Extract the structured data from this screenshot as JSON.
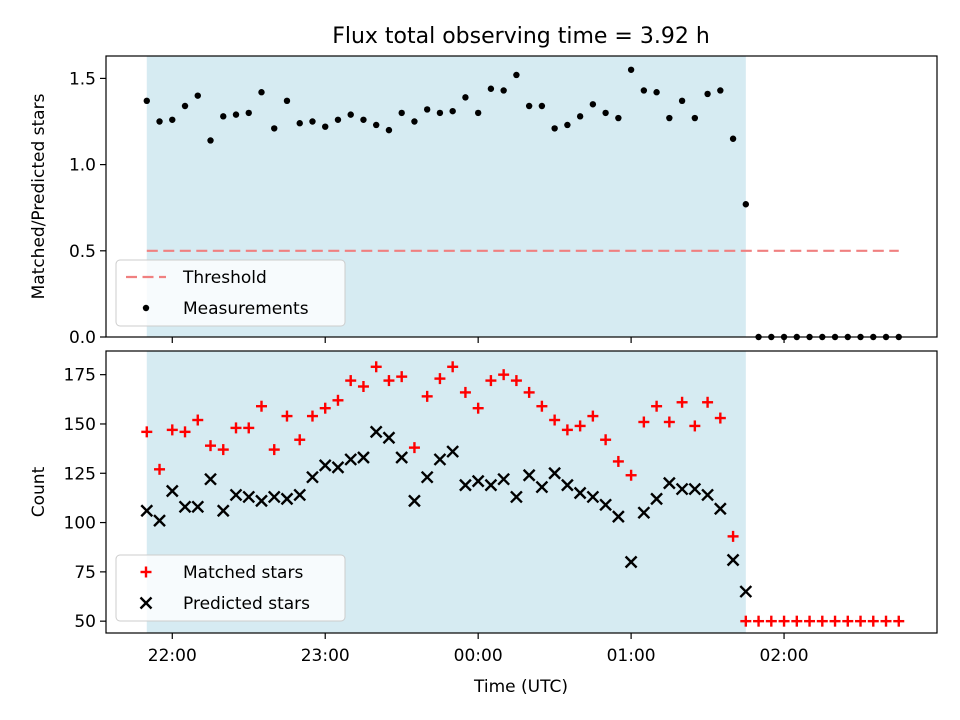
{
  "figure": {
    "title": "Flux total observing time = 3.92 h",
    "xlabel": "Time (UTC)",
    "x_ticks": [
      {
        "t": 0,
        "label": "22:00"
      },
      {
        "t": 60,
        "label": "23:00"
      },
      {
        "t": 120,
        "label": "00:00"
      },
      {
        "t": 180,
        "label": "01:00"
      },
      {
        "t": 240,
        "label": "02:00"
      }
    ],
    "xlim": [
      -26,
      300
    ],
    "observing_window": [
      -10,
      225
    ],
    "colors": {
      "window": "#add8e6",
      "threshold": "#f08080",
      "measurements": "#000000",
      "matched": "#ff0000",
      "predicted": "#000000"
    }
  },
  "chart_data": [
    {
      "type": "scatter",
      "ylabel": "Matched/Predicted stars",
      "ylim": [
        0,
        1.63
      ],
      "y_ticks": [
        {
          "v": 0.0,
          "label": "0.0"
        },
        {
          "v": 0.5,
          "label": "0.5"
        },
        {
          "v": 1.0,
          "label": "1.0"
        },
        {
          "v": 1.5,
          "label": "1.5"
        }
      ],
      "legend": {
        "position": "lower-left",
        "entries": [
          "Threshold",
          "Measurements"
        ]
      },
      "threshold": {
        "name": "Threshold",
        "y": 0.5,
        "x_range": [
          -10,
          285
        ]
      },
      "series": [
        {
          "name": "Measurements",
          "x": [
            -10,
            -5,
            0,
            5,
            10,
            15,
            20,
            25,
            30,
            35,
            40,
            45,
            50,
            55,
            60,
            65,
            70,
            75,
            80,
            85,
            90,
            95,
            100,
            105,
            110,
            115,
            120,
            125,
            130,
            135,
            140,
            145,
            150,
            155,
            160,
            165,
            170,
            175,
            180,
            185,
            190,
            195,
            200,
            205,
            210,
            215,
            220,
            225,
            230,
            235,
            240,
            245,
            250,
            255,
            260,
            265,
            270,
            275,
            280,
            285
          ],
          "y": [
            1.37,
            1.25,
            1.26,
            1.34,
            1.4,
            1.14,
            1.28,
            1.29,
            1.3,
            1.42,
            1.21,
            1.37,
            1.24,
            1.25,
            1.22,
            1.26,
            1.29,
            1.26,
            1.23,
            1.2,
            1.3,
            1.25,
            1.32,
            1.3,
            1.31,
            1.39,
            1.3,
            1.44,
            1.43,
            1.52,
            1.34,
            1.34,
            1.21,
            1.23,
            1.28,
            1.35,
            1.3,
            1.27,
            1.55,
            1.43,
            1.42,
            1.27,
            1.37,
            1.27,
            1.41,
            1.43,
            1.15,
            0.77,
            0,
            0,
            0,
            0,
            0,
            0,
            0,
            0,
            0,
            0,
            0,
            0
          ]
        }
      ]
    },
    {
      "type": "scatter",
      "ylabel": "Count",
      "ylim": [
        44,
        187
      ],
      "y_ticks": [
        {
          "v": 50,
          "label": "50"
        },
        {
          "v": 75,
          "label": "75"
        },
        {
          "v": 100,
          "label": "100"
        },
        {
          "v": 125,
          "label": "125"
        },
        {
          "v": 150,
          "label": "150"
        },
        {
          "v": 175,
          "label": "175"
        }
      ],
      "legend": {
        "position": "lower-left",
        "entries": [
          "Matched stars",
          "Predicted stars"
        ]
      },
      "series": [
        {
          "name": "Matched stars",
          "marker": "plus",
          "x": [
            -10,
            -5,
            0,
            5,
            10,
            15,
            20,
            25,
            30,
            35,
            40,
            45,
            50,
            55,
            60,
            65,
            70,
            75,
            80,
            85,
            90,
            95,
            100,
            105,
            110,
            115,
            120,
            125,
            130,
            135,
            140,
            145,
            150,
            155,
            160,
            165,
            170,
            175,
            180,
            185,
            190,
            195,
            200,
            205,
            210,
            215,
            220,
            225,
            230,
            235,
            240,
            245,
            250,
            255,
            260,
            265,
            270,
            275,
            280,
            285
          ],
          "y": [
            146,
            127,
            147,
            146,
            152,
            139,
            137,
            148,
            148,
            159,
            137,
            154,
            142,
            154,
            158,
            162,
            172,
            169,
            179,
            172,
            174,
            138,
            164,
            173,
            179,
            166,
            158,
            172,
            175,
            172,
            166,
            159,
            152,
            147,
            149,
            154,
            142,
            131,
            124,
            151,
            159,
            151,
            161,
            149,
            161,
            153,
            93,
            50,
            50,
            50,
            50,
            50,
            50,
            50,
            50,
            50,
            50,
            50,
            50,
            50
          ]
        },
        {
          "name": "Predicted stars",
          "marker": "x",
          "x": [
            -10,
            -5,
            0,
            5,
            10,
            15,
            20,
            25,
            30,
            35,
            40,
            45,
            50,
            55,
            60,
            65,
            70,
            75,
            80,
            85,
            90,
            95,
            100,
            105,
            110,
            115,
            120,
            125,
            130,
            135,
            140,
            145,
            150,
            155,
            160,
            165,
            170,
            175,
            180,
            185,
            190,
            195,
            200,
            205,
            210,
            215,
            220,
            225
          ],
          "y": [
            106,
            101,
            116,
            108,
            108,
            122,
            106,
            114,
            113,
            111,
            113,
            112,
            114,
            123,
            129,
            128,
            132,
            133,
            146,
            143,
            133,
            111,
            123,
            132,
            136,
            119,
            121,
            119,
            122,
            113,
            124,
            118,
            125,
            119,
            115,
            113,
            109,
            103,
            80,
            105,
            112,
            120,
            117,
            117,
            114,
            107,
            81,
            65
          ]
        }
      ]
    }
  ]
}
